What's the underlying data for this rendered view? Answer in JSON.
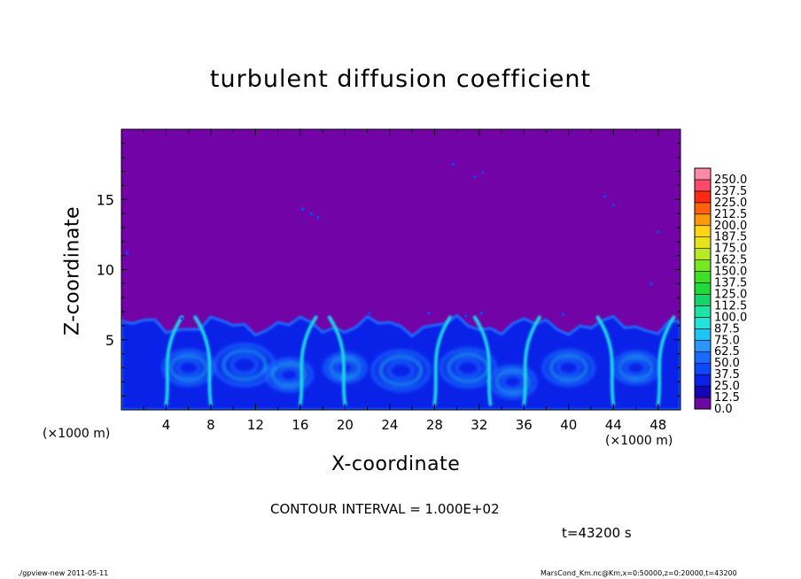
{
  "page": {
    "footer_left": "./gpview-new   2011-05-11",
    "footer_right": "MarsCond_Km.nc@Km,x=0:50000,z=0:20000,t=43200"
  },
  "chart_data": {
    "type": "heatmap",
    "title": "turbulent diffusion coefficient",
    "xlabel": "X-coordinate",
    "ylabel": "Z-coordinate",
    "x_unit_label": "(×1000 m)",
    "x_unit_label_right": "(×1000 m)",
    "xlim": [
      0,
      50
    ],
    "ylim": [
      0,
      20
    ],
    "xticks": [
      4,
      8,
      12,
      16,
      20,
      24,
      28,
      32,
      36,
      40,
      44,
      48
    ],
    "yticks": [
      5,
      10,
      15
    ],
    "contour_interval_text": "CONTOUR INTERVAL = 1.000E+02",
    "time_text": "t=43200 s",
    "background_value": 0.0,
    "turbulent_layer_top_z_km": 6,
    "plumes_x_km": [
      4,
      8,
      16,
      20,
      28,
      33,
      36,
      44,
      48
    ],
    "colorbar": {
      "levels": [
        "0.0",
        "12.5",
        "25.0",
        "37.5",
        "50.0",
        "62.5",
        "75.0",
        "87.5",
        "100.0",
        "112.5",
        "125.0",
        "137.5",
        "150.0",
        "162.5",
        "175.0",
        "187.5",
        "200.0",
        "212.5",
        "225.0",
        "237.5",
        "250.0"
      ],
      "colors": [
        "#6b0aa3",
        "#1406b8",
        "#0a22e8",
        "#0c48ff",
        "#1a6aff",
        "#2a96ff",
        "#1ec4f2",
        "#22e4d6",
        "#1fe3a4",
        "#16d46a",
        "#22d93a",
        "#3de024",
        "#79e624",
        "#b5ea24",
        "#e6e31c",
        "#ffd514",
        "#ff9a0a",
        "#ff620a",
        "#ff2a14",
        "#ff4a6a",
        "#ff8aa8"
      ]
    }
  }
}
